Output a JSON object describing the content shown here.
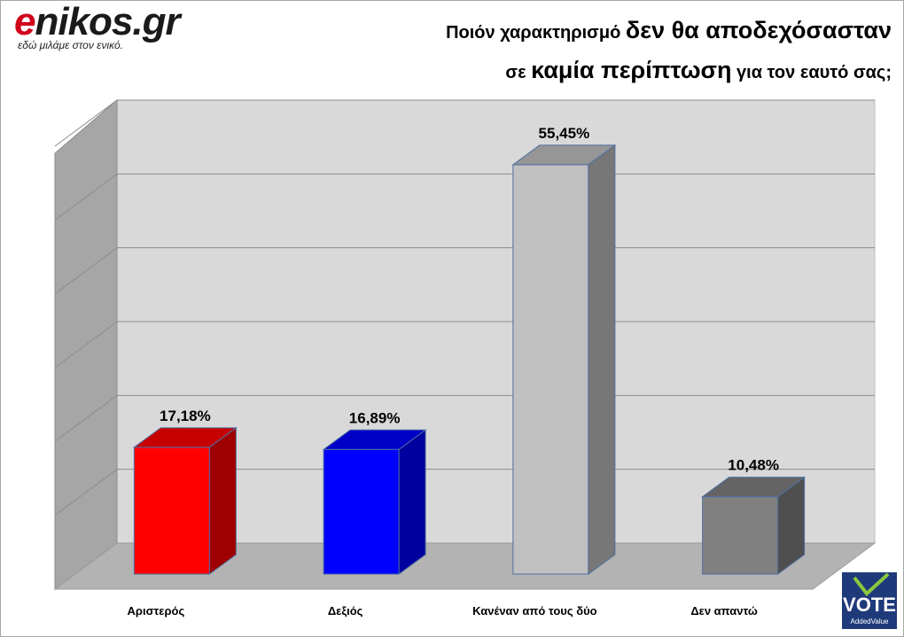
{
  "logo": {
    "brand_e": "e",
    "brand_rest": "nikos",
    "brand_tld": ".gr",
    "tagline": "εδώ μιλάμε στον ενικό."
  },
  "title": {
    "line1_small": "Ποιόν χαρακτηρισμό ",
    "line1_large": "δεν θα αποδεχόσασταν",
    "line2_small_a": "σε ",
    "line2_large": "καμία περίπτωση",
    "line2_small_b": " για τον εαυτό σας;"
  },
  "chart_data": {
    "type": "bar",
    "title": "Ποιόν χαρακτηρισμό δεν θα αποδεχόσασταν σε καμία περίπτωση για τον εαυτό σας;",
    "categories": [
      "Αριστερός",
      "Δεξιός",
      "Κανέναν από τους δύο",
      "Δεν απαντώ"
    ],
    "values": [
      17.18,
      16.89,
      55.45,
      10.48
    ],
    "labels": [
      "17,18%",
      "16,89%",
      "55,45%",
      "10,48%"
    ],
    "colors": [
      "#ff0000",
      "#0000ff",
      "#c0c0c0",
      "#808080"
    ],
    "ylim": [
      0,
      60
    ],
    "grid": true,
    "xlabel": "",
    "ylabel": ""
  },
  "vote_logo": {
    "text": "VOTE",
    "subtext": "AddedValue",
    "colors": {
      "bg": "#1f3a7a",
      "check": "#8dc63f"
    }
  }
}
